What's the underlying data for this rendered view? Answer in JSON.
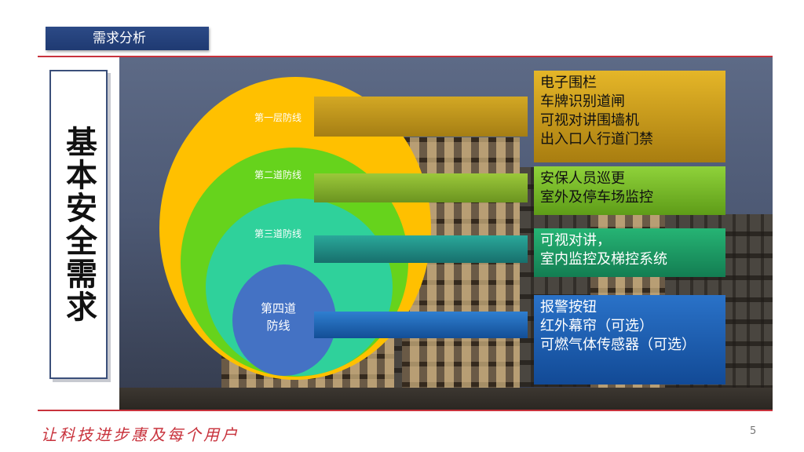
{
  "slide": {
    "title": "需求分析",
    "side_heading": "基本安全需求",
    "slogan": "让科技进步惠及每个用户",
    "page_number": "5"
  },
  "layers": [
    {
      "label": "第一层防线",
      "color": "#ffc000",
      "bar_color": "#b78f18",
      "box_color": "#c89a1a",
      "items": [
        "电子围栏",
        "车牌识别道闸",
        "可视对讲围墙机",
        "出入口人行道门禁"
      ]
    },
    {
      "label": "第二道防线",
      "color": "#66d31c",
      "bar_color": "#7fa82a",
      "box_color": "#78b82a",
      "items": [
        "安保人员巡更",
        "室外及停车场监控"
      ]
    },
    {
      "label": "第三道防线",
      "color": "#2fd19b",
      "bar_color": "#1f8a84",
      "box_color": "#22a86c",
      "items": [
        "可视对讲，",
        "室内监控及梯控系统"
      ]
    },
    {
      "label": "第四道\n防线",
      "color": "#4472c4",
      "bar_color": "#1c5fae",
      "box_color": "#1f5fb5",
      "items": [
        "报警按钮",
        "红外幕帘（可选）",
        "可燃气体传感器（可选）"
      ]
    }
  ]
}
